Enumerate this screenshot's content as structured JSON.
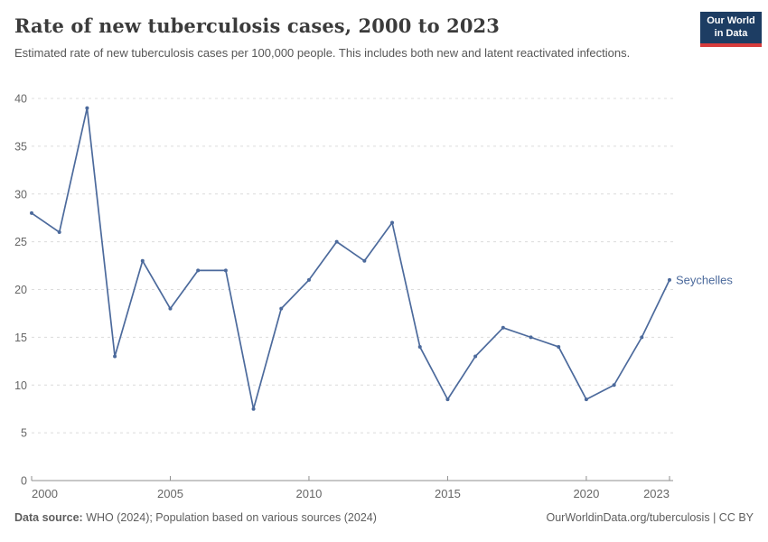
{
  "header": {
    "title": "Rate of new tuberculosis cases, 2000 to 2023",
    "subtitle": "Estimated rate of new tuberculosis cases per 100,000 people. This includes both new and latent reactivated infections.",
    "logo": {
      "line1": "Our World",
      "line2": "in Data"
    }
  },
  "footer": {
    "source_label": "Data source:",
    "source_text": " WHO (2024); Population based on various sources (2024)",
    "url": "OurWorldinData.org/tuberculosis",
    "divider": " | ",
    "license": "CC BY"
  },
  "colors": {
    "line": "#4C6A9C",
    "grid": "#dcdcdc",
    "axis": "#8f8f8f",
    "tick_text": "#666666",
    "logo_bg": "#1d3d63",
    "logo_stripe": "#d73c3c"
  },
  "chart_data": {
    "type": "line",
    "title": "Rate of new tuberculosis cases, 2000 to 2023",
    "entity": "Seychelles",
    "x": [
      2000,
      2001,
      2002,
      2003,
      2004,
      2005,
      2006,
      2007,
      2008,
      2009,
      2010,
      2011,
      2012,
      2013,
      2014,
      2015,
      2016,
      2017,
      2018,
      2019,
      2020,
      2021,
      2022,
      2023
    ],
    "values": [
      28,
      26,
      39,
      13,
      23,
      18,
      22,
      22,
      7.5,
      18,
      21,
      25,
      23,
      27,
      14,
      8.5,
      13,
      16,
      15,
      14,
      8.5,
      10,
      15,
      21
    ],
    "xticks": [
      2000,
      2005,
      2010,
      2015,
      2020,
      2023
    ],
    "yticks": [
      0,
      5,
      10,
      15,
      20,
      25,
      30,
      35,
      40
    ],
    "ylim": [
      0,
      40
    ],
    "xlabel": "",
    "ylabel": "",
    "grid": "horizontal-dashed",
    "legend_position": "end-of-line-label",
    "line_color": "#4C6A9C",
    "marker": "dot"
  }
}
